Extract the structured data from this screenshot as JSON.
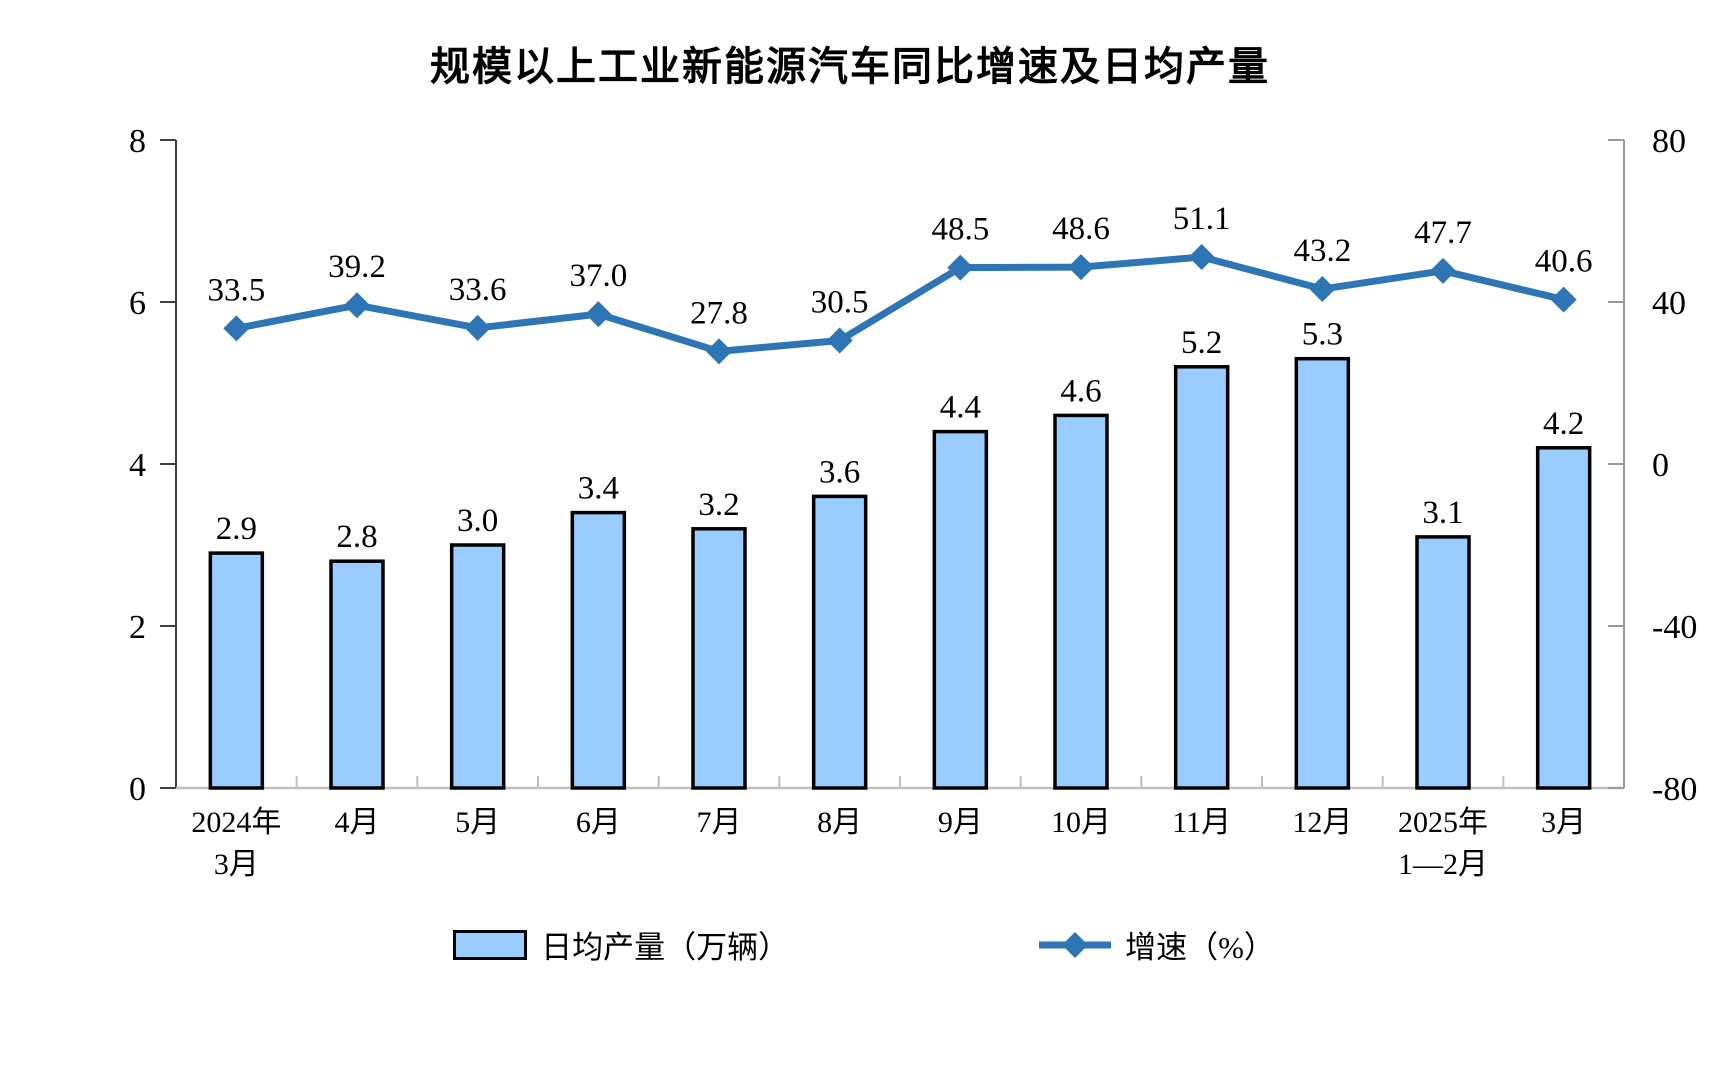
{
  "title": "规模以上工业新能源汽车同比增速及日均产量",
  "legend": {
    "bar_label": "日均产量（万辆）",
    "line_label": "增速（%）"
  },
  "colors": {
    "background": "#FFFFFF",
    "bar_fill": "#99CCFF",
    "bar_stroke": "#000000",
    "line": "#2E75B6",
    "axis_left": "#404040",
    "axis_right": "#999999",
    "axis_bottom": "#BFBFBF",
    "text": "#000000"
  },
  "chart_data": {
    "type": "combo-bar-line",
    "title": "规模以上工业新能源汽车同比增速及日均产量",
    "categories": [
      {
        "label": "2024年",
        "sublabel": "3月"
      },
      {
        "label": "4月",
        "sublabel": ""
      },
      {
        "label": "5月",
        "sublabel": ""
      },
      {
        "label": "6月",
        "sublabel": ""
      },
      {
        "label": "7月",
        "sublabel": ""
      },
      {
        "label": "8月",
        "sublabel": ""
      },
      {
        "label": "9月",
        "sublabel": ""
      },
      {
        "label": "10月",
        "sublabel": ""
      },
      {
        "label": "11月",
        "sublabel": ""
      },
      {
        "label": "12月",
        "sublabel": ""
      },
      {
        "label": "2025年",
        "sublabel": "1—2月"
      },
      {
        "label": "3月",
        "sublabel": ""
      }
    ],
    "series": [
      {
        "name": "日均产量（万辆）",
        "type": "bar",
        "axis": "left",
        "values": [
          2.9,
          2.8,
          3.0,
          3.4,
          3.2,
          3.6,
          4.4,
          4.6,
          5.2,
          5.3,
          3.1,
          4.2
        ],
        "labels": [
          "2.9",
          "2.8",
          "3.0",
          "3.4",
          "3.2",
          "3.6",
          "4.4",
          "4.6",
          "5.2",
          "5.3",
          "3.1",
          "4.2"
        ]
      },
      {
        "name": "增速（%）",
        "type": "line",
        "axis": "right",
        "values": [
          33.5,
          39.2,
          33.6,
          37.0,
          27.8,
          30.5,
          48.5,
          48.6,
          51.1,
          43.2,
          47.7,
          40.6
        ],
        "labels": [
          "33.5",
          "39.2",
          "33.6",
          "37.0",
          "27.8",
          "30.5",
          "48.5",
          "48.6",
          "51.1",
          "43.2",
          "47.7",
          "40.6"
        ]
      }
    ],
    "left_axis": {
      "min": 0,
      "max": 8,
      "ticks": [
        "0",
        "2",
        "4",
        "6",
        "8"
      ]
    },
    "right_axis": {
      "min": -80,
      "max": 80,
      "ticks": [
        "-80",
        "-40",
        "0",
        "40",
        "80"
      ]
    },
    "legend_position": "bottom",
    "grid": false
  }
}
